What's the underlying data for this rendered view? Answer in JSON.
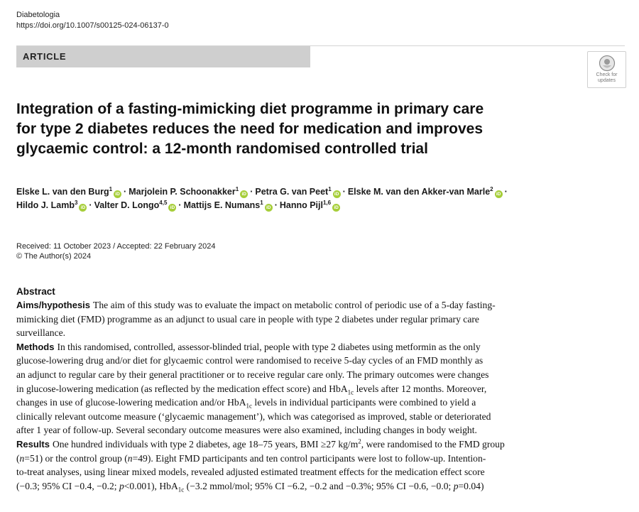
{
  "header": {
    "journal": "Diabetologia",
    "doi": "https://doi.org/10.1007/s00125-024-06137-0",
    "article_type": "ARTICLE",
    "check_updates_line1": "Check for",
    "check_updates_line2": "updates"
  },
  "title_lines": [
    "Integration of a fasting-mimicking diet programme in primary care",
    "for type 2 diabetes reduces the need for medication and improves",
    "glycaemic control: a 12-month randomised controlled trial"
  ],
  "authors": [
    {
      "name": "Elske L. van den Burg",
      "aff": "1"
    },
    {
      "name": "Marjolein P. Schoonakker",
      "aff": "1"
    },
    {
      "name": "Petra G. van Peet",
      "aff": "1"
    },
    {
      "name": "Elske M. van den Akker-van Marle",
      "aff": "2"
    },
    {
      "name": "Hildo J. Lamb",
      "aff": "3"
    },
    {
      "name": "Valter D. Longo",
      "aff": "4,5"
    },
    {
      "name": "Mattijs E. Numans",
      "aff": "1"
    },
    {
      "name": "Hanno Pijl",
      "aff": "1,6"
    }
  ],
  "author_separator": "·",
  "orcid_label": "iD",
  "dates": {
    "received_accepted": "Received: 11 October 2023 / Accepted: 22 February 2024",
    "copyright": "© The Author(s) 2024"
  },
  "abstract": {
    "heading": "Abstract",
    "aims_label": "Aims/hypothesis",
    "aims_text": [
      "The aim of this study was to evaluate the impact on metabolic control of periodic use of a 5-day fasting-",
      "mimicking diet (FMD) programme as an adjunct to usual care in people with type 2 diabetes under regular primary care",
      "surveillance."
    ],
    "methods_label": "Methods",
    "methods_text": [
      "In this randomised, controlled, assessor-blinded trial, people with type 2 diabetes using metformin as the only",
      "glucose-lowering drug and/or diet for glycaemic control were randomised to receive 5-day cycles of an FMD monthly as",
      "an adjunct to regular care by their general practitioner or to receive regular care only. The primary outcomes were changes",
      "in glucose-lowering medication (as reflected by the medication effect score) and HbA",
      " levels after 12 months. Moreover,",
      "changes in use of glucose-lowering medication and/or HbA",
      " levels in individual participants were combined to yield a",
      "clinically relevant outcome measure (‘glycaemic management’), which was categorised as improved, stable or deteriorated",
      "after 1 year of follow-up. Several secondary outcome measures were also examined, including changes in body weight."
    ],
    "hba_sub": "1c",
    "results_label": "Results",
    "results_text": [
      "One hundred individuals with type 2 diabetes, age 18–75 years, BMI ≥27 kg/m",
      ", were randomised to the FMD group",
      "(",
      "=51) or the control group (",
      "=49). Eight FMD participants and ten control participants were lost to follow-up. Intention-",
      "to-treat analyses, using linear mixed models, revealed adjusted estimated treatment effects for the medication effect score",
      "(−0.3; 95% CI −0.4, −0.2; ",
      "<0.001), HbA",
      " (−3.2 mmol/mol; 95% CI −6.2, −0.2 and −0.3%; 95% CI −0.6, −0.0; ",
      "=0.04)"
    ],
    "sup2": "2",
    "n_var": "n",
    "p_var": "p"
  }
}
